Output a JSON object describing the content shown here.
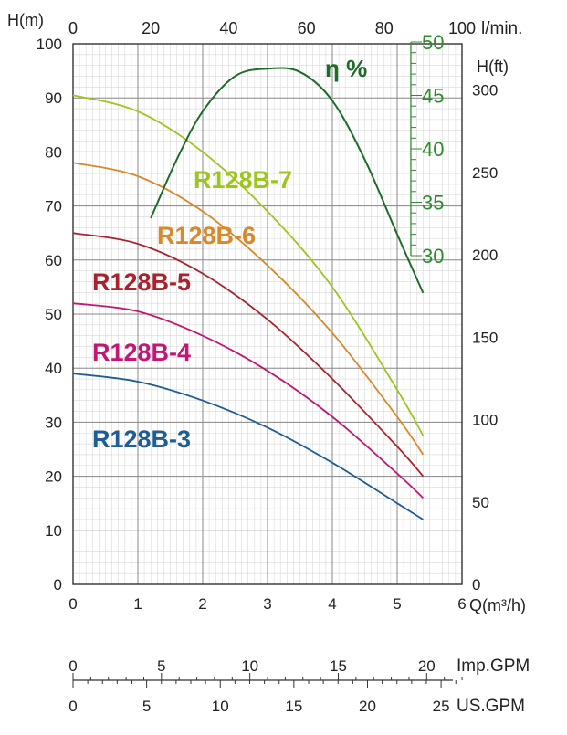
{
  "chart_data": {
    "type": "line",
    "title": "",
    "x": [
      0,
      1,
      2,
      3,
      4,
      5,
      6
    ],
    "xlabel": "Q(m³/h)",
    "x_top_label": "l/min.",
    "ylabel_left": "H(m)",
    "ylabel_right": "H(ft)",
    "eff_label": "η %",
    "xlim": [
      0,
      6
    ],
    "ylim": [
      0,
      100
    ],
    "grid": true,
    "top_ticks": [
      "0",
      "20",
      "40",
      "60",
      "80",
      "100"
    ],
    "left_ticks": [
      "0",
      "10",
      "20",
      "30",
      "40",
      "50",
      "60",
      "70",
      "80",
      "90",
      "100"
    ],
    "bottom_ticks": [
      "0",
      "1",
      "2",
      "3",
      "4",
      "5",
      "6"
    ],
    "ft_ticks": [
      "0",
      "50",
      "100",
      "150",
      "200",
      "250",
      "300"
    ],
    "eff_ticks": [
      "30",
      "35",
      "40",
      "45",
      "50"
    ],
    "eff_axis_color": "#2e8b2e",
    "series": [
      {
        "name": "R128B-7",
        "color": "#9cc61c",
        "points": [
          [
            0,
            90.5
          ],
          [
            1,
            87.5
          ],
          [
            2,
            80
          ],
          [
            3,
            69
          ],
          [
            4,
            55
          ],
          [
            5,
            36
          ],
          [
            5.4,
            27.5
          ]
        ]
      },
      {
        "name": "R128B-6",
        "color": "#d8892a",
        "points": [
          [
            0,
            78
          ],
          [
            1,
            75.5
          ],
          [
            2,
            69
          ],
          [
            3,
            59
          ],
          [
            4,
            46.5
          ],
          [
            5,
            31
          ],
          [
            5.4,
            24
          ]
        ]
      },
      {
        "name": "R128B-5",
        "color": "#a8232e",
        "points": [
          [
            0,
            65
          ],
          [
            1,
            63
          ],
          [
            2,
            57.5
          ],
          [
            3,
            49
          ],
          [
            4,
            38
          ],
          [
            5,
            25.5
          ],
          [
            5.4,
            20
          ]
        ]
      },
      {
        "name": "R128B-4",
        "color": "#c21874",
        "points": [
          [
            0,
            52
          ],
          [
            1,
            50.5
          ],
          [
            2,
            46
          ],
          [
            3,
            39.5
          ],
          [
            4,
            31
          ],
          [
            5,
            20.5
          ],
          [
            5.4,
            16
          ]
        ]
      },
      {
        "name": "R128B-3",
        "color": "#1f5d96",
        "points": [
          [
            0,
            39
          ],
          [
            1,
            37.5
          ],
          [
            2,
            34
          ],
          [
            3,
            29
          ],
          [
            4,
            22.5
          ],
          [
            5,
            15
          ],
          [
            5.4,
            12
          ]
        ]
      }
    ],
    "efficiency": {
      "name": "η %",
      "color": "#1e6b2a",
      "points": [
        [
          1.2,
          33.5
        ],
        [
          1.6,
          39
        ],
        [
          2,
          43.5
        ],
        [
          2.5,
          46.8
        ],
        [
          3,
          47.5
        ],
        [
          3.5,
          47.2
        ],
        [
          4,
          44.5
        ],
        [
          4.5,
          39
        ],
        [
          5,
          32
        ],
        [
          5.4,
          26.5
        ]
      ]
    },
    "imp_gpm": {
      "label": "Imp.GPM",
      "ticks": [
        0,
        5,
        10,
        15,
        20
      ]
    },
    "us_gpm": {
      "label": "US.GPM",
      "ticks": [
        0,
        5,
        10,
        15,
        20,
        25
      ]
    }
  }
}
